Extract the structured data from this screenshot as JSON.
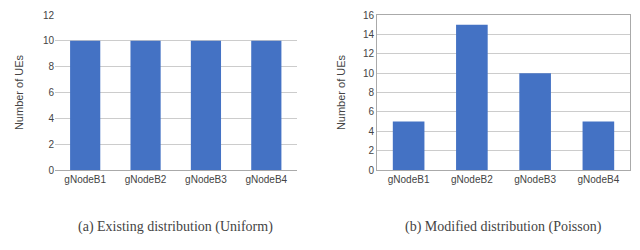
{
  "chart_data": [
    {
      "type": "bar",
      "title": "(a) Existing distribution (Uniform)",
      "categories": [
        "gNodeB1",
        "gNodeB2",
        "gNodeB3",
        "gNodeB4"
      ],
      "values": [
        10,
        10,
        10,
        10
      ],
      "color": "#4472C4",
      "ylabel": "Number of UEs",
      "ylim": [
        0,
        12
      ],
      "yticks": [
        0,
        2,
        4,
        6,
        8,
        10,
        12
      ],
      "grid": true
    },
    {
      "type": "bar",
      "title": "(b) Modified distribution (Poisson)",
      "categories": [
        "gNodeB1",
        "gNodeB2",
        "gNodeB3",
        "gNodeB4"
      ],
      "values": [
        5,
        15,
        10,
        5
      ],
      "color": "#4472C4",
      "ylabel": "Number of UEs",
      "ylim": [
        0,
        16
      ],
      "yticks": [
        0,
        2,
        4,
        6,
        8,
        10,
        12,
        14,
        16
      ],
      "grid": true
    }
  ]
}
